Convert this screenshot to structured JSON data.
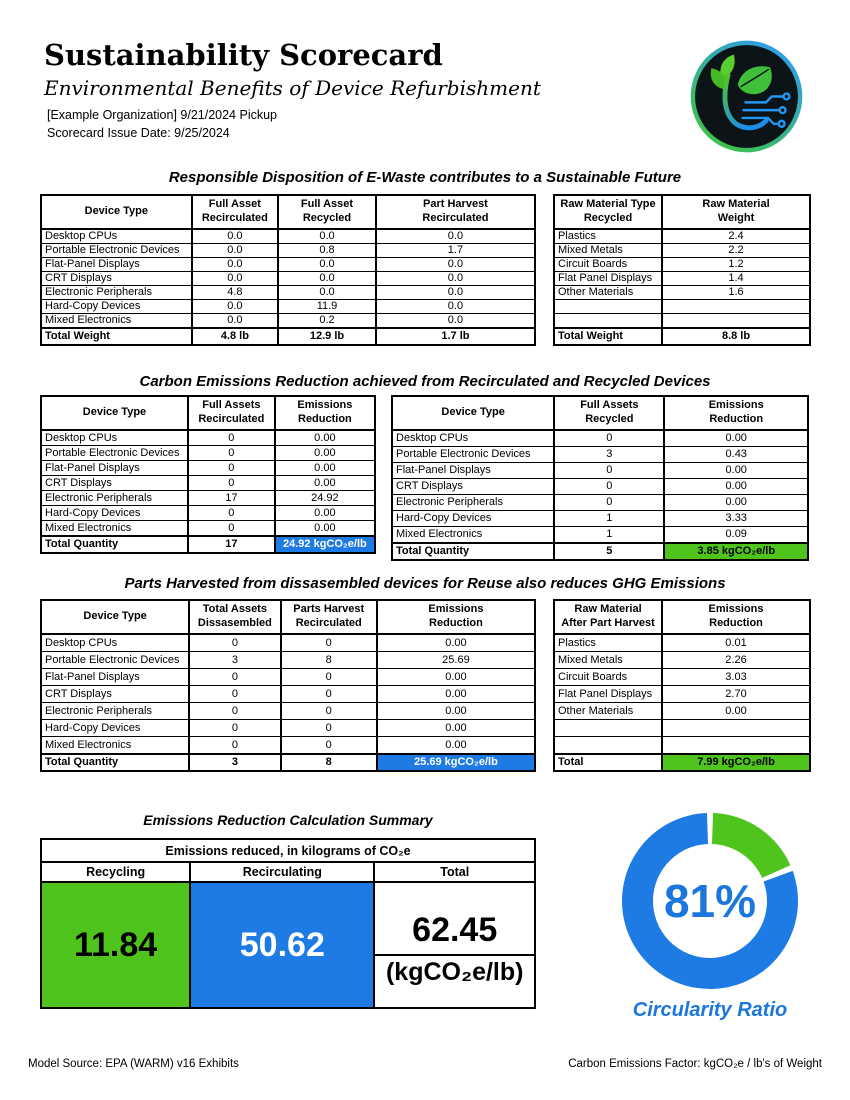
{
  "page": {
    "title": "Sustainability Scorecard",
    "subtitle": "Environmental Benefits of Device Refurbishment",
    "org_line": "[Example Organization] 9/21/2024 Pickup",
    "issue_line": "Scorecard Issue Date: 9/25/2024",
    "footer_left": "Model Source: EPA (WARM) v16 Exhibits",
    "footer_right": "Carbon Emissions Factor: kgCO₂e / lb's of Weight"
  },
  "colors": {
    "highlight_blue": "#1e7be4",
    "highlight_green": "#4ec41d",
    "accent_blue_text": "#1b76dd"
  },
  "sections": {
    "disposition": {
      "title": "Responsible Disposition of E-Waste contributes to a Sustainable Future"
    },
    "carbon": {
      "title": "Carbon Emissions Reduction achieved from Recirculated and Recycled Devices"
    },
    "parts": {
      "title": "Parts Harvested from dissasembled devices for Reuse also reduces GHG Emissions"
    },
    "summary": {
      "title": "Emissions Reduction Calculation Summary"
    }
  },
  "tables": {
    "disposition_by_device": {
      "headers": [
        "Device Type",
        "Full Asset\nRecirculated",
        "Full Asset\nRecycled",
        "Part Harvest\nRecirculated"
      ],
      "widths": [
        30.5,
        17.5,
        19.8,
        32.2
      ],
      "rows": [
        [
          "Desktop CPUs",
          "0.0",
          "0.0",
          "0.0"
        ],
        [
          "Portable Electronic Devices",
          "0.0",
          "0.8",
          "1.7"
        ],
        [
          "Flat-Panel Displays",
          "0.0",
          "0.0",
          "0.0"
        ],
        [
          "CRT Displays",
          "0.0",
          "0.0",
          "0.0"
        ],
        [
          "Electronic Peripherals",
          "4.8",
          "0.0",
          "0.0"
        ],
        [
          "Hard-Copy Devices",
          "0.0",
          "11.9",
          "0.0"
        ],
        [
          "Mixed Electronics",
          "0.0",
          "0.2",
          "0.0"
        ]
      ],
      "total": [
        "Total Weight",
        "4.8 lb",
        "12.9 lb",
        "1.7 lb"
      ]
    },
    "raw_material_recycled": {
      "headers": [
        "Raw Material Type\nRecycled",
        "Raw Material\nWeight"
      ],
      "widths": [
        42.2,
        57.8
      ],
      "rows": [
        [
          "Plastics",
          "2.4"
        ],
        [
          "Mixed Metals",
          "2.2"
        ],
        [
          "Circuit Boards",
          "1.2"
        ],
        [
          "Flat Panel Displays",
          "1.4"
        ],
        [
          "Other Materials",
          "1.6"
        ],
        [
          "",
          ""
        ],
        [
          "",
          ""
        ]
      ],
      "total": [
        "Total Weight",
        "8.8 lb"
      ]
    },
    "recirculated_emissions": {
      "headers": [
        "Device Type",
        "Full Assets\nRecirculated",
        "Emissions\nReduction"
      ],
      "widths": [
        44,
        26,
        30
      ],
      "rows": [
        [
          "Desktop CPUs",
          "0",
          "0.00"
        ],
        [
          "Portable Electronic Devices",
          "0",
          "0.00"
        ],
        [
          "Flat-Panel Displays",
          "0",
          "0.00"
        ],
        [
          "CRT Displays",
          "0",
          "0.00"
        ],
        [
          "Electronic Peripherals",
          "17",
          "24.92"
        ],
        [
          "Hard-Copy Devices",
          "0",
          "0.00"
        ],
        [
          "Mixed Electronics",
          "0",
          "0.00"
        ]
      ],
      "total": [
        "Total Quantity",
        "17",
        "24.92 kgCO₂e/lb"
      ],
      "total_highlight": {
        "col": 2,
        "class": "hl-blue"
      }
    },
    "recycled_emissions": {
      "headers": [
        "Device Type",
        "Full Assets\nRecycled",
        "Emissions\nReduction"
      ],
      "widths": [
        39,
        26.5,
        34.5
      ],
      "rows": [
        [
          "Desktop CPUs",
          "0",
          "0.00"
        ],
        [
          "Portable Electronic Devices",
          "3",
          "0.43"
        ],
        [
          "Flat-Panel Displays",
          "0",
          "0.00"
        ],
        [
          "CRT Displays",
          "0",
          "0.00"
        ],
        [
          "Electronic Peripherals",
          "0",
          "0.00"
        ],
        [
          "Hard-Copy Devices",
          "1",
          "3.33"
        ],
        [
          "Mixed Electronics",
          "1",
          "0.09"
        ]
      ],
      "total": [
        "Total Quantity",
        "5",
        "3.85 kgCO₂e/lb"
      ],
      "total_highlight": {
        "col": 2,
        "class": "hl-green"
      }
    },
    "parts_harvest_emissions": {
      "headers": [
        "Device Type",
        "Total Assets\nDissasembled",
        "Parts Harvest\nRecirculated",
        "Emissions\nReduction"
      ],
      "widths": [
        30,
        18.5,
        19.5,
        32
      ],
      "rows": [
        [
          "Desktop CPUs",
          "0",
          "0",
          "0.00"
        ],
        [
          "Portable Electronic Devices",
          "3",
          "8",
          "25.69"
        ],
        [
          "Flat-Panel Displays",
          "0",
          "0",
          "0.00"
        ],
        [
          "CRT Displays",
          "0",
          "0",
          "0.00"
        ],
        [
          "Electronic Peripherals",
          "0",
          "0",
          "0.00"
        ],
        [
          "Hard-Copy Devices",
          "0",
          "0",
          "0.00"
        ],
        [
          "Mixed Electronics",
          "0",
          "0",
          "0.00"
        ]
      ],
      "total": [
        "Total Quantity",
        "3",
        "8",
        "25.69 kgCO₂e/lb"
      ],
      "total_highlight": {
        "col": 3,
        "class": "hl-blue"
      }
    },
    "raw_material_after_harvest": {
      "headers": [
        "Raw Material\nAfter Part Harvest",
        "Emissions\nReduction"
      ],
      "widths": [
        42.2,
        57.8
      ],
      "rows": [
        [
          "Plastics",
          "0.01"
        ],
        [
          "Mixed Metals",
          "2.26"
        ],
        [
          "Circuit Boards",
          "3.03"
        ],
        [
          "Flat Panel Displays",
          "2.70"
        ],
        [
          "Other Materials",
          "0.00"
        ],
        [
          "",
          ""
        ],
        [
          "",
          ""
        ]
      ],
      "total": [
        "Total",
        "7.99 kgCO₂e/lb"
      ],
      "total_highlight": {
        "col": 1,
        "class": "hl-green"
      }
    }
  },
  "summary_table": {
    "span_header": "Emissions reduced, in kilograms of CO₂e",
    "columns": [
      "Recycling",
      "Recirculating",
      "Total"
    ],
    "recycling_value": "11.84",
    "recirculating_value": "50.62",
    "total_value": "62.45",
    "total_units": "(kgCO₂e/lb)"
  },
  "circularity": {
    "percent_label": "81%",
    "caption": "Circularity Ratio"
  },
  "chart_data": {
    "type": "pie",
    "title": "Circularity Ratio",
    "labels": [
      "Recirculating share",
      "Recycling share"
    ],
    "values": [
      81,
      19
    ],
    "colors": [
      "#1e7be4",
      "#4ec41d"
    ],
    "center_label": "81%",
    "legend_position": "none"
  }
}
